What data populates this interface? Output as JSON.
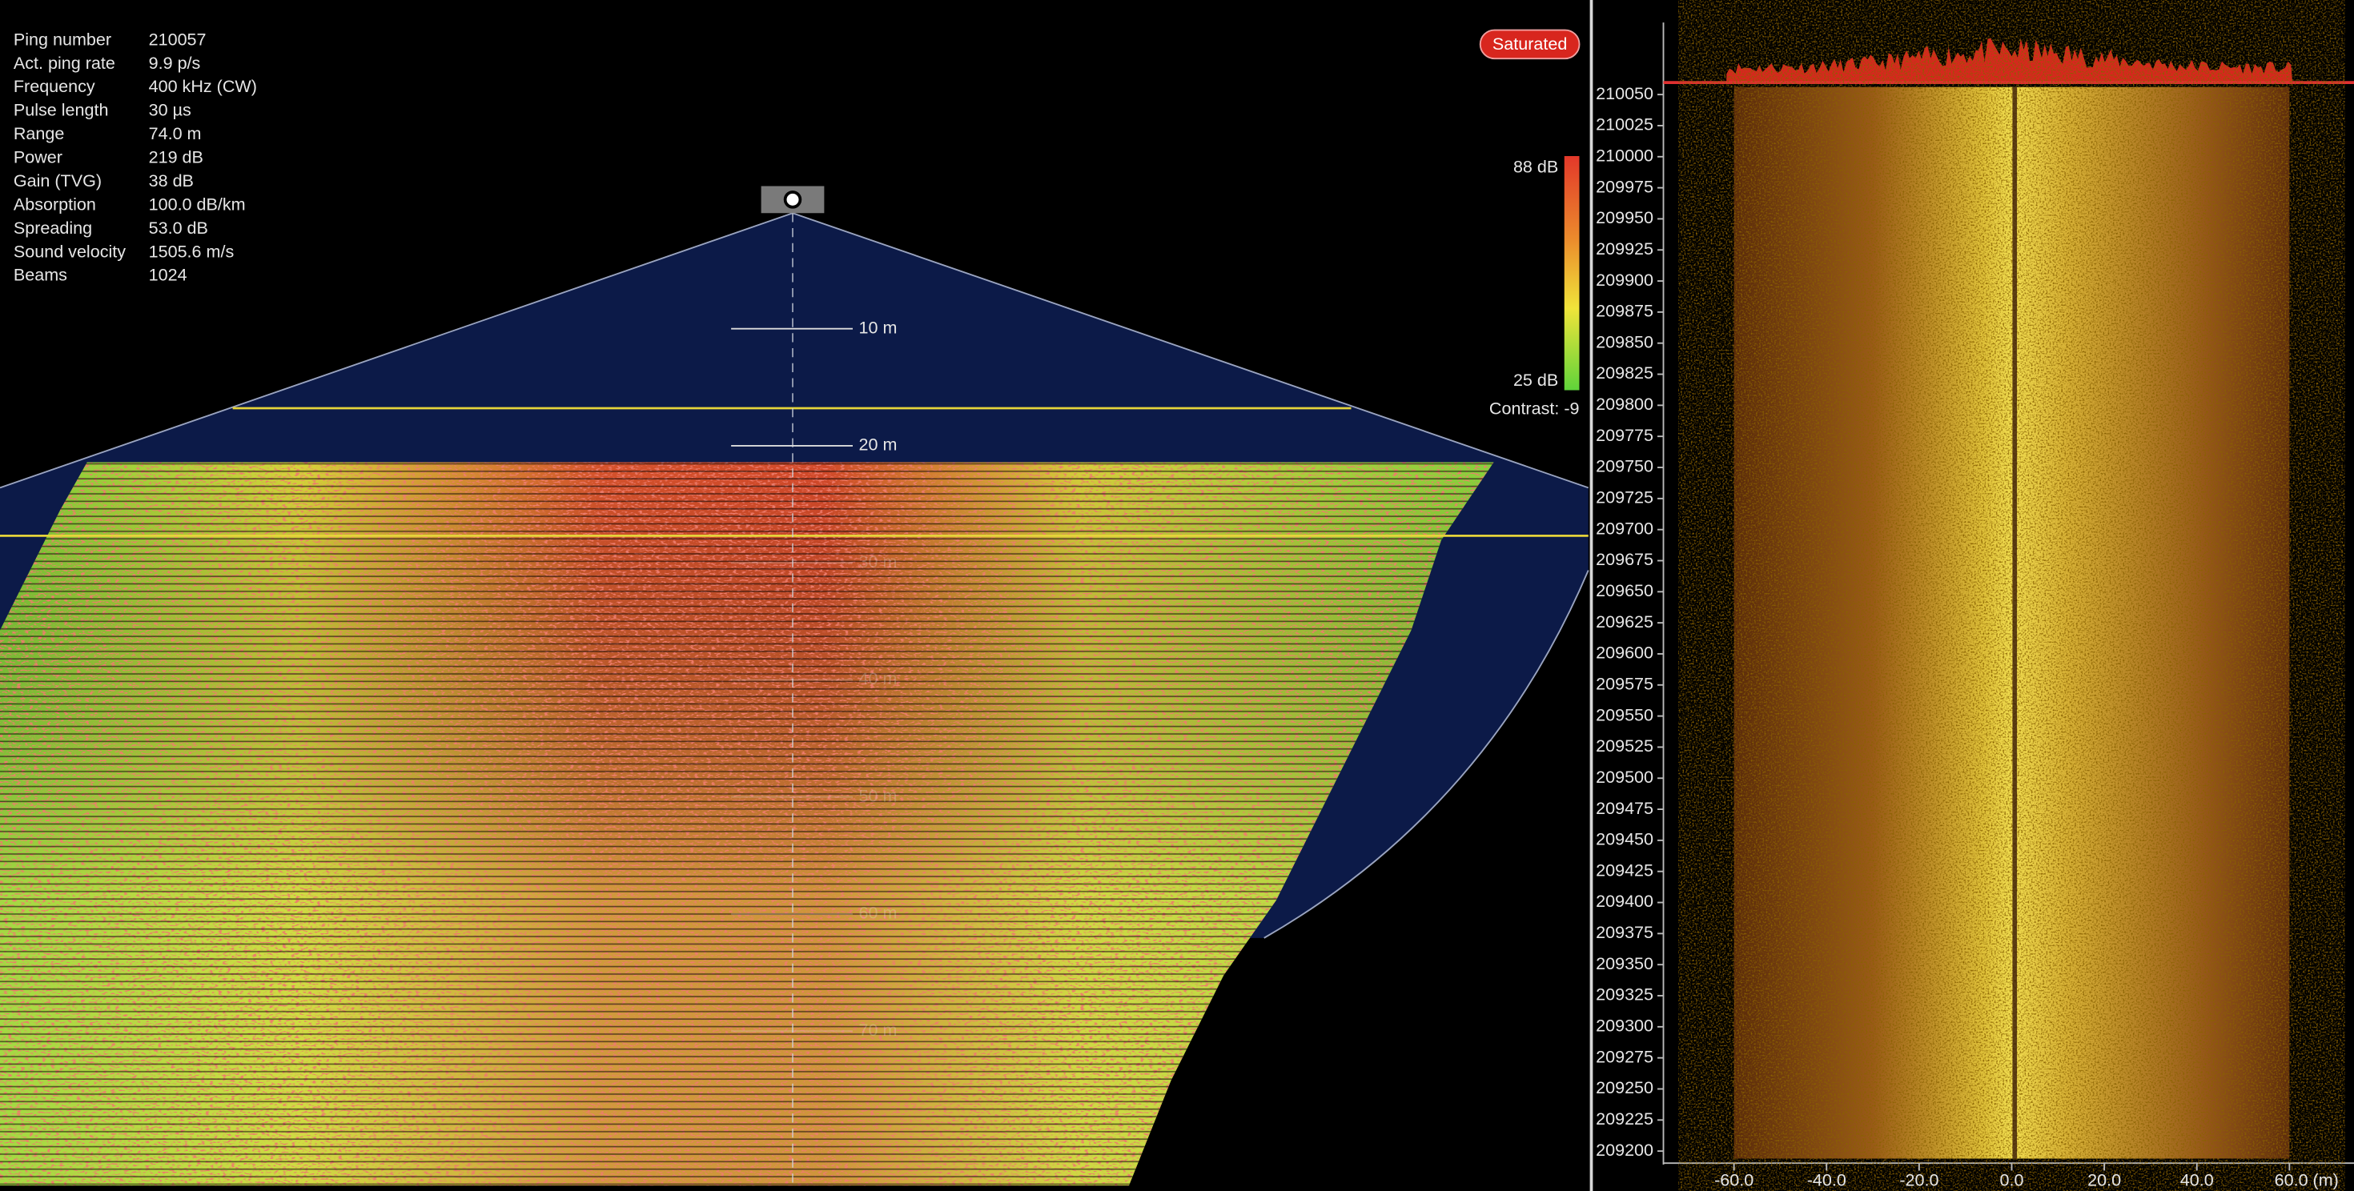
{
  "info_panel": {
    "rows": [
      [
        "Ping number",
        "210057"
      ],
      [
        "Act. ping rate",
        "9.9 p/s"
      ],
      [
        "Frequency",
        "400 kHz (CW)"
      ],
      [
        "Pulse length",
        "30 µs"
      ],
      [
        "Range",
        "74.0 m"
      ],
      [
        "Power",
        "219 dB"
      ],
      [
        "Gain (TVG)",
        "38 dB"
      ],
      [
        "Absorption",
        "100.0 dB/km"
      ],
      [
        "Spreading",
        "53.0 dB"
      ],
      [
        "Sound velocity",
        "1505.6 m/s"
      ],
      [
        "Beams",
        "1024"
      ]
    ]
  },
  "status_badge": "Saturated",
  "color_scale": {
    "max_label": "88 dB",
    "min_label": "25 dB",
    "contrast": "Contrast: -9"
  },
  "range_rings": [
    "10 m",
    "20 m",
    "30 m",
    "40 m",
    "50 m",
    "60 m",
    "70 m"
  ],
  "waterfall": {
    "y_labels": [
      "210050",
      "210025",
      "210000",
      "209975",
      "209950",
      "209925",
      "209900",
      "209875",
      "209850",
      "209825",
      "209800",
      "209775",
      "209750",
      "209725",
      "209700",
      "209675",
      "209650",
      "209625",
      "209600",
      "209575",
      "209550",
      "209525",
      "209500",
      "209475",
      "209450",
      "209425",
      "209400",
      "209375",
      "209350",
      "209325",
      "209300",
      "209275",
      "209250",
      "209225",
      "209200"
    ],
    "x_labels": [
      "-60.0",
      "-40.0",
      "-20.0",
      "0.0",
      "20.0",
      "40.0",
      "60.0 (m)"
    ]
  }
}
